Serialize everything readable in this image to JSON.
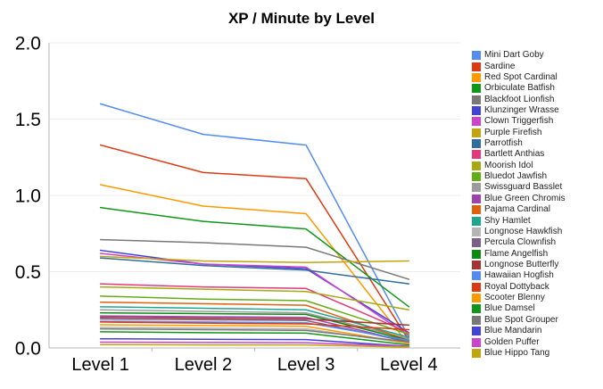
{
  "title": "XP / Minute by Level",
  "chart_data": {
    "type": "line",
    "title": "XP / Minute by Level",
    "xlabel": "",
    "ylabel": "",
    "categories": [
      "Level 1",
      "Level 2",
      "Level 3",
      "Level 4"
    ],
    "y_tick_labels": [
      "0.0",
      "0.5",
      "1.0",
      "1.5",
      "2.0"
    ],
    "ylim": [
      0.0,
      2.0
    ],
    "grid": true,
    "legend_position": "right",
    "axis_colors": {
      "gridline": "#ececec",
      "axis_line": "#b7b7b7",
      "tick_label": "#000000",
      "legend_text": "#222222"
    },
    "series": [
      {
        "name": "Mini Dart Goby",
        "color": "#548bf4",
        "values": [
          1.6,
          1.4,
          1.33,
          0.07
        ]
      },
      {
        "name": "Sardine",
        "color": "#dc3a12",
        "values": [
          1.33,
          1.15,
          1.11,
          0.05
        ]
      },
      {
        "name": "Red Spot Cardinal",
        "color": "#ff9900",
        "values": [
          1.07,
          0.93,
          0.88,
          0.02
        ]
      },
      {
        "name": "Orbiculate Batfish",
        "color": "#109618",
        "values": [
          0.92,
          0.83,
          0.78,
          0.27
        ]
      },
      {
        "name": "Blackfoot Lionfish",
        "color": "#787878",
        "values": [
          0.71,
          0.69,
          0.66,
          0.45
        ]
      },
      {
        "name": "Klunzinger Wrasse",
        "color": "#4142d7",
        "values": [
          0.64,
          0.55,
          0.52,
          0.1
        ]
      },
      {
        "name": "Clown Triggerfish",
        "color": "#cc42cc",
        "values": [
          0.62,
          0.55,
          0.53,
          0.08
        ]
      },
      {
        "name": "Purple Firefish",
        "color": "#c2a40c",
        "values": [
          0.6,
          0.57,
          0.56,
          0.57
        ]
      },
      {
        "name": "Parrotfish",
        "color": "#2e6d9d",
        "values": [
          0.59,
          0.54,
          0.51,
          0.42
        ]
      },
      {
        "name": "Bartlett Anthias",
        "color": "#e0397c",
        "values": [
          0.42,
          0.4,
          0.39,
          0.1
        ]
      },
      {
        "name": "Moorish Idol",
        "color": "#a8a812",
        "values": [
          0.4,
          0.385,
          0.37,
          0.25
        ]
      },
      {
        "name": "Bluedot Jawfish",
        "color": "#63ad16",
        "values": [
          0.34,
          0.32,
          0.31,
          0.09
        ]
      },
      {
        "name": "Swissguard Basslet",
        "color": "#9b9b9b",
        "values": [
          0.25,
          0.24,
          0.23,
          0.06
        ]
      },
      {
        "name": "Blue Green Chromis",
        "color": "#9e42ad",
        "values": [
          0.21,
          0.205,
          0.2,
          0.04
        ]
      },
      {
        "name": "Pajama Cardinal",
        "color": "#e0600e",
        "values": [
          0.3,
          0.29,
          0.28,
          0.05
        ]
      },
      {
        "name": "Shy Hamlet",
        "color": "#1da68f",
        "values": [
          0.27,
          0.26,
          0.25,
          0.07
        ]
      },
      {
        "name": "Longnose Hawkfish",
        "color": "#b5b5b5",
        "values": [
          0.135,
          0.13,
          0.125,
          0.03
        ]
      },
      {
        "name": "Percula Clownfish",
        "color": "#7d5e87",
        "values": [
          0.19,
          0.185,
          0.18,
          0.04
        ]
      },
      {
        "name": "Flame Angelfish",
        "color": "#0c8a14",
        "values": [
          0.23,
          0.225,
          0.22,
          0.05
        ]
      },
      {
        "name": "Longnose Butterfly",
        "color": "#a63232",
        "values": [
          0.2,
          0.195,
          0.19,
          0.15
        ]
      },
      {
        "name": "Hawaiian Hogfish",
        "color": "#548bf4",
        "values": [
          0.175,
          0.17,
          0.165,
          0.05
        ]
      },
      {
        "name": "Royal Dottyback",
        "color": "#dc3a12",
        "values": [
          0.17,
          0.163,
          0.158,
          0.12
        ]
      },
      {
        "name": "Scooter Blenny",
        "color": "#ff9900",
        "values": [
          0.152,
          0.147,
          0.142,
          0.03
        ]
      },
      {
        "name": "Blue Damsel",
        "color": "#109618",
        "values": [
          0.106,
          0.1,
          0.097,
          0.02
        ]
      },
      {
        "name": "Blue Spot Grouper",
        "color": "#787878",
        "values": [
          0.125,
          0.12,
          0.115,
          0.04
        ]
      },
      {
        "name": "Blue Mandarin",
        "color": "#4142d7",
        "values": [
          0.06,
          0.057,
          0.055,
          0.01
        ]
      },
      {
        "name": "Golden Puffer",
        "color": "#cc42cc",
        "values": [
          0.038,
          0.036,
          0.034,
          0.01
        ]
      },
      {
        "name": "Blue Hippo Tang",
        "color": "#c2a40c",
        "values": [
          0.022,
          0.02,
          0.02,
          0.005
        ]
      }
    ]
  }
}
